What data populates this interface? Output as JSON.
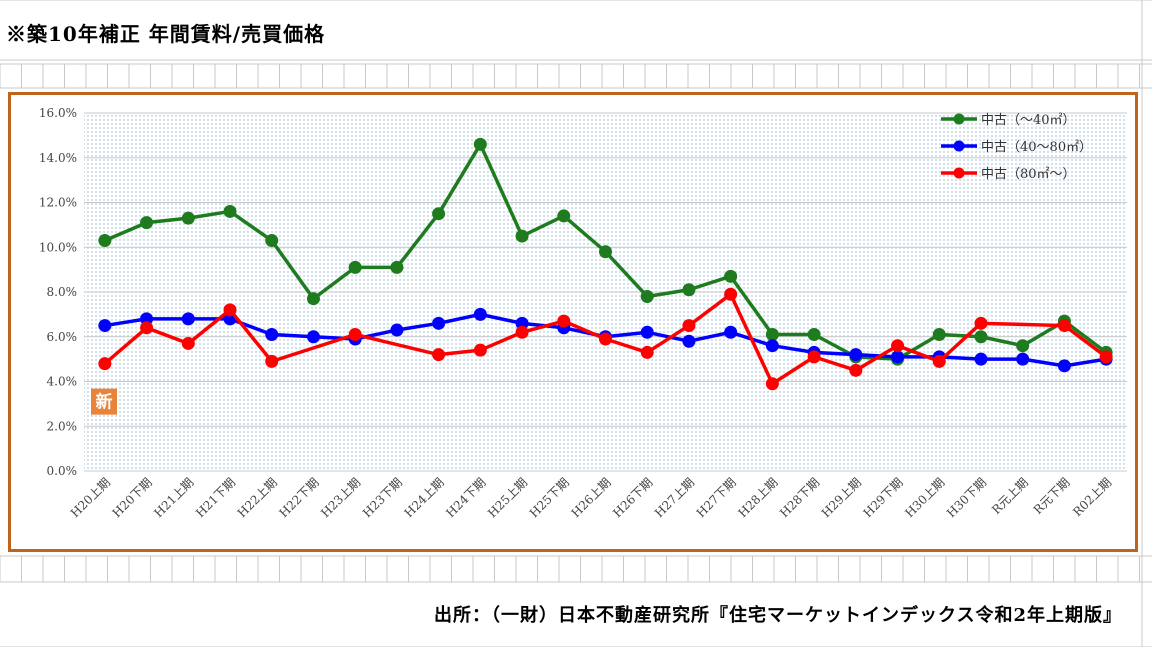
{
  "title": "※築10年補正 年間賃料/売買価格",
  "source": "出所：（一財）日本不動産研究所『住宅マーケットインデックス令和2年上期版』",
  "new_badge": "新",
  "chart_data": {
    "type": "line",
    "categories": [
      "H20上期",
      "H20下期",
      "H21上期",
      "H21下期",
      "H22上期",
      "H22下期",
      "H23上期",
      "H23下期",
      "H24上期",
      "H24下期",
      "H25上期",
      "H25下期",
      "H26上期",
      "H26下期",
      "H27上期",
      "H27下期",
      "H28上期",
      "H28下期",
      "H29上期",
      "H29下期",
      "H30上期",
      "H30下期",
      "R元上期",
      "R元下期",
      "R02上期"
    ],
    "ylim": [
      0,
      16
    ],
    "yticks": [
      "0.0%",
      "2.0%",
      "4.0%",
      "6.0%",
      "8.0%",
      "10.0%",
      "12.0%",
      "14.0%",
      "16.0%"
    ],
    "ytick_values": [
      0,
      2,
      4,
      6,
      8,
      10,
      12,
      14,
      16
    ],
    "grid": true,
    "legend_position": "top-right",
    "series": [
      {
        "name": "中古（～40㎡）",
        "color": "#1e7b1e",
        "values": [
          10.3,
          11.1,
          11.3,
          11.6,
          10.3,
          7.7,
          9.1,
          9.1,
          11.5,
          14.6,
          10.5,
          11.4,
          9.8,
          7.8,
          8.1,
          8.7,
          6.1,
          6.1,
          5.1,
          5.0,
          6.1,
          6.0,
          5.6,
          6.7,
          5.3
        ]
      },
      {
        "name": "中古（40～80㎡）",
        "color": "#0000ff",
        "values": [
          6.5,
          6.8,
          6.8,
          6.8,
          6.1,
          6.0,
          5.9,
          6.3,
          6.6,
          7.0,
          6.6,
          6.4,
          6.0,
          6.2,
          5.8,
          6.2,
          5.6,
          5.3,
          5.2,
          5.1,
          5.1,
          5.0,
          5.0,
          4.7,
          5.0
        ]
      },
      {
        "name": "中古（80㎡～）",
        "color": "#ff0000",
        "values": [
          4.8,
          6.4,
          5.7,
          7.2,
          4.9,
          null,
          6.1,
          null,
          5.2,
          5.4,
          6.2,
          6.7,
          5.9,
          5.3,
          6.5,
          7.9,
          3.9,
          5.1,
          4.5,
          5.6,
          4.9,
          6.6,
          null,
          6.5,
          5.1
        ]
      }
    ]
  }
}
